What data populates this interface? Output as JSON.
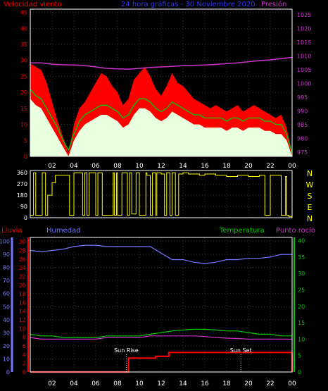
{
  "header": {
    "wind_label": "Velocidad viento",
    "title": "24 hora gráficas - 30 Noviembre 2020",
    "pressure_label": "Presión"
  },
  "lower_labels": {
    "rain": "Lluvia",
    "humidity": "Humedad",
    "temperature": "Temperatura",
    "dewpoint": "Punto rocío"
  },
  "annotations": {
    "sunrise": "Sun Rise",
    "sunset": "Sun Set"
  },
  "colors": {
    "background": "#000000",
    "frame": "#ffffff",
    "grid": "#555555",
    "gust": "#ff0000",
    "wind": "#e8ffe0",
    "wind_avg": "#00cc00",
    "pressure": "#cc33cc",
    "direction": "#ffff00",
    "humidity": "#7777ff",
    "temperature": "#00cc00",
    "dewpoint": "#cc33cc",
    "rain": "#ff0000",
    "title": "#3333ff",
    "wind_axis": "#ff0000",
    "pressure_axis": "#cc33cc",
    "compass": "#ffff00",
    "humidity_axis": "#7777ff",
    "rain_axis": "#ff0000",
    "temp_axis": "#00cc00",
    "time_ticks": "#ffffff"
  },
  "chart_data": [
    {
      "type": "area",
      "panel": "wind-speed-pressure",
      "x_tick_labels": [
        "02",
        "04",
        "06",
        "08",
        "10",
        "12",
        "14",
        "16",
        "18",
        "20",
        "22",
        "00"
      ],
      "y_left": {
        "ticks": [
          0,
          5,
          10,
          15,
          20,
          25,
          30,
          35,
          40,
          45
        ],
        "range": [
          0,
          46
        ]
      },
      "y_right": {
        "ticks": [
          975,
          980,
          985,
          990,
          995,
          1000,
          1005,
          1010,
          1015,
          1020,
          1025
        ],
        "range": [
          973.5,
          1027
        ]
      },
      "series": [
        {
          "name": "Velocidad viento",
          "axis": "left",
          "style": "gust",
          "hours": [
            0,
            0.5,
            1,
            1.5,
            2,
            2.5,
            3,
            3.5,
            4,
            4.5,
            5,
            5.5,
            6,
            6.5,
            7,
            7.5,
            8,
            8.5,
            9,
            9.5,
            10,
            10.5,
            11,
            11.5,
            12,
            12.5,
            13,
            13.5,
            14,
            14.5,
            15,
            15.5,
            16,
            16.5,
            17,
            17.5,
            18,
            18.5,
            19,
            19.5,
            20,
            20.5,
            21,
            21.5,
            22,
            22.5,
            23,
            23.5,
            24
          ],
          "values": [
            29,
            28,
            27,
            23,
            17,
            11,
            6,
            1,
            10,
            15,
            17,
            20,
            23,
            26,
            25,
            22,
            20,
            16,
            18,
            24,
            26,
            28,
            25,
            21,
            19,
            22,
            26,
            23,
            22,
            20,
            18,
            17,
            16,
            15,
            16,
            15,
            14,
            15,
            16,
            14,
            15,
            16,
            15,
            14,
            13,
            12,
            13,
            9,
            1
          ]
        },
        {
          "name": "avg",
          "axis": "left",
          "style": "fill",
          "hours": [
            0,
            0.5,
            1,
            1.5,
            2,
            2.5,
            3,
            3.5,
            4,
            4.5,
            5,
            5.5,
            6,
            6.5,
            7,
            7.5,
            8,
            8.5,
            9,
            9.5,
            10,
            10.5,
            11,
            11.5,
            12,
            12.5,
            13,
            13.5,
            14,
            14.5,
            15,
            15.5,
            16,
            16.5,
            17,
            17.5,
            18,
            18.5,
            19,
            19.5,
            20,
            20.5,
            21,
            21.5,
            22,
            22.5,
            23,
            23.5,
            24
          ],
          "values": [
            18,
            16,
            15,
            12,
            9,
            6,
            3,
            0,
            5,
            8,
            10,
            11,
            12,
            13,
            13,
            12,
            11,
            9,
            10,
            13,
            15,
            15,
            14,
            12,
            11,
            12,
            14,
            13,
            12,
            11,
            10,
            10,
            9,
            9,
            9,
            9,
            8,
            9,
            9,
            8,
            9,
            9,
            9,
            8,
            8,
            7,
            7,
            5,
            0
          ]
        },
        {
          "name": "avg-line",
          "axis": "left",
          "style": "line",
          "hours": [
            0,
            0.5,
            1,
            1.5,
            2,
            2.5,
            3,
            3.5,
            4,
            4.5,
            5,
            5.5,
            6,
            6.5,
            7,
            7.5,
            8,
            8.5,
            9,
            9.5,
            10,
            10.5,
            11,
            11.5,
            12,
            12.5,
            13,
            13.5,
            14,
            14.5,
            15,
            15.5,
            16,
            16.5,
            17,
            17.5,
            18,
            18.5,
            19,
            19.5,
            20,
            20.5,
            21,
            21.5,
            22,
            22.5,
            23,
            23.5,
            24
          ],
          "values": [
            21,
            19,
            18,
            15,
            12,
            9,
            5,
            2,
            7,
            11,
            13,
            14,
            15,
            16,
            16,
            15,
            14,
            12,
            13,
            16,
            18,
            18,
            17,
            15,
            14,
            15,
            17,
            16,
            15,
            14,
            13,
            13,
            12,
            12,
            12,
            12,
            11,
            12,
            12,
            11,
            12,
            12,
            12,
            11,
            11,
            10,
            10,
            7,
            1
          ]
        },
        {
          "name": "Presión",
          "axis": "right",
          "style": "line",
          "hours": [
            0,
            1,
            2,
            3,
            4,
            5,
            6,
            7,
            8,
            9,
            10,
            11,
            12,
            13,
            14,
            15,
            16,
            17,
            18,
            19,
            20,
            21,
            22,
            23,
            24
          ],
          "values": [
            1007.5,
            1007.5,
            1007,
            1006.8,
            1006.7,
            1006.5,
            1006,
            1005.5,
            1005.3,
            1005.2,
            1005.5,
            1005.8,
            1006,
            1006.2,
            1006.5,
            1006.6,
            1006.7,
            1006.9,
            1007.2,
            1007.5,
            1007.9,
            1008.3,
            1008.6,
            1009,
            1009.5
          ]
        }
      ]
    },
    {
      "type": "line",
      "panel": "wind-direction",
      "y_left": {
        "ticks": [
          0,
          90,
          180,
          270,
          360
        ],
        "range": [
          0,
          378
        ]
      },
      "y_right_labels": [
        "N",
        "W",
        "S",
        "E",
        "N"
      ],
      "series": [
        {
          "name": "direction",
          "style": "step",
          "hours": [
            0,
            0.3,
            0.5,
            1.1,
            1.4,
            1.6,
            2.0,
            2.3,
            3.6,
            4.0,
            4.8,
            5.0,
            5.2,
            5.4,
            6.0,
            6.2,
            6.6,
            7.6,
            7.7,
            7.9,
            8.0,
            8.4,
            8.9,
            9.1,
            9.3,
            9.7,
            10.0,
            10.6,
            10.7,
            11.0,
            11.2,
            11.5,
            11.6,
            12.0,
            12.3,
            12.5,
            12.8,
            13.0,
            13.3,
            13.6,
            14.0,
            14.5,
            15.5,
            16.0,
            17.0,
            18.0,
            19.0,
            20.0,
            21.0,
            21.5,
            22.0,
            23.0,
            23.4,
            23.5,
            23.7,
            24
          ],
          "values": [
            20,
            360,
            20,
            360,
            20,
            180,
            280,
            340,
            20,
            360,
            20,
            360,
            20,
            360,
            20,
            360,
            20,
            360,
            20,
            360,
            20,
            360,
            20,
            360,
            30,
            360,
            20,
            360,
            340,
            20,
            360,
            20,
            360,
            350,
            20,
            360,
            20,
            360,
            20,
            350,
            360,
            350,
            340,
            350,
            340,
            330,
            340,
            330,
            340,
            20,
            340,
            20,
            330,
            20,
            10,
            340
          ]
        }
      ]
    },
    {
      "type": "line",
      "panel": "humidity-temperature-rain",
      "x_tick_labels": [
        "02",
        "04",
        "06",
        "08",
        "10",
        "12",
        "14",
        "16",
        "18",
        "20",
        "22",
        "00"
      ],
      "y_humidity": {
        "ticks": [
          0,
          10,
          20,
          30,
          40,
          50,
          60,
          70,
          80,
          90,
          100
        ],
        "range": [
          0,
          103
        ]
      },
      "y_rain": {
        "ticks": [
          0,
          2,
          4,
          6,
          8,
          10,
          12,
          14,
          16,
          18,
          20,
          22,
          24,
          26,
          28,
          30
        ],
        "range": [
          0,
          31
        ]
      },
      "y_temperature": {
        "ticks": [
          0,
          5,
          10,
          15,
          20,
          25,
          30,
          35,
          40
        ],
        "range": [
          0,
          41
        ]
      },
      "series": [
        {
          "name": "Humedad",
          "axis": "humidity",
          "hours": [
            0,
            1,
            2,
            3,
            4,
            5,
            6,
            7,
            8,
            9,
            10,
            11,
            12,
            13,
            14,
            15,
            16,
            17,
            18,
            19,
            20,
            21,
            22,
            23,
            24
          ],
          "values": [
            93,
            92,
            93,
            94,
            96,
            97,
            97,
            96,
            96,
            96,
            96,
            96,
            91,
            86,
            86,
            84,
            83,
            84,
            86,
            86,
            87,
            87,
            88,
            90,
            90
          ]
        },
        {
          "name": "Temperatura",
          "axis": "temperature",
          "hours": [
            0,
            1,
            2,
            3,
            4,
            5,
            6,
            7,
            8,
            9,
            10,
            11,
            12,
            13,
            14,
            15,
            16,
            17,
            18,
            19,
            20,
            21,
            22,
            23,
            24
          ],
          "values": [
            11.5,
            11,
            11,
            10.5,
            10.5,
            10.5,
            10.5,
            11,
            11,
            11,
            11,
            11.5,
            12,
            12.5,
            12.8,
            13,
            13,
            12.8,
            12.5,
            12.5,
            12,
            11.5,
            11.5,
            11,
            11
          ]
        },
        {
          "name": "Punto rocío",
          "axis": "temperature",
          "hours": [
            0,
            1,
            2,
            3,
            4,
            5,
            6,
            7,
            8,
            9,
            10,
            11,
            12,
            13,
            14,
            15,
            16,
            17,
            18,
            19,
            20,
            21,
            22,
            23,
            24
          ],
          "values": [
            10.5,
            10,
            10,
            10,
            10,
            10,
            10,
            10.5,
            10.5,
            10.5,
            10.5,
            11,
            11,
            11,
            11,
            11,
            10.8,
            10.5,
            10.3,
            10.2,
            10,
            10,
            10,
            10,
            10
          ]
        },
        {
          "name": "Lluvia",
          "axis": "rain",
          "style": "step",
          "hours": [
            0,
            8.9,
            9.0,
            11.5,
            12.6,
            12.7,
            23.9,
            24
          ],
          "values": [
            0,
            0,
            3.2,
            3.6,
            3.6,
            4.5,
            4.5,
            0
          ]
        }
      ],
      "annotations": [
        {
          "label_key": "sunrise",
          "hour": 8.8
        },
        {
          "label_key": "sunset",
          "hour": 19.3
        }
      ]
    }
  ]
}
